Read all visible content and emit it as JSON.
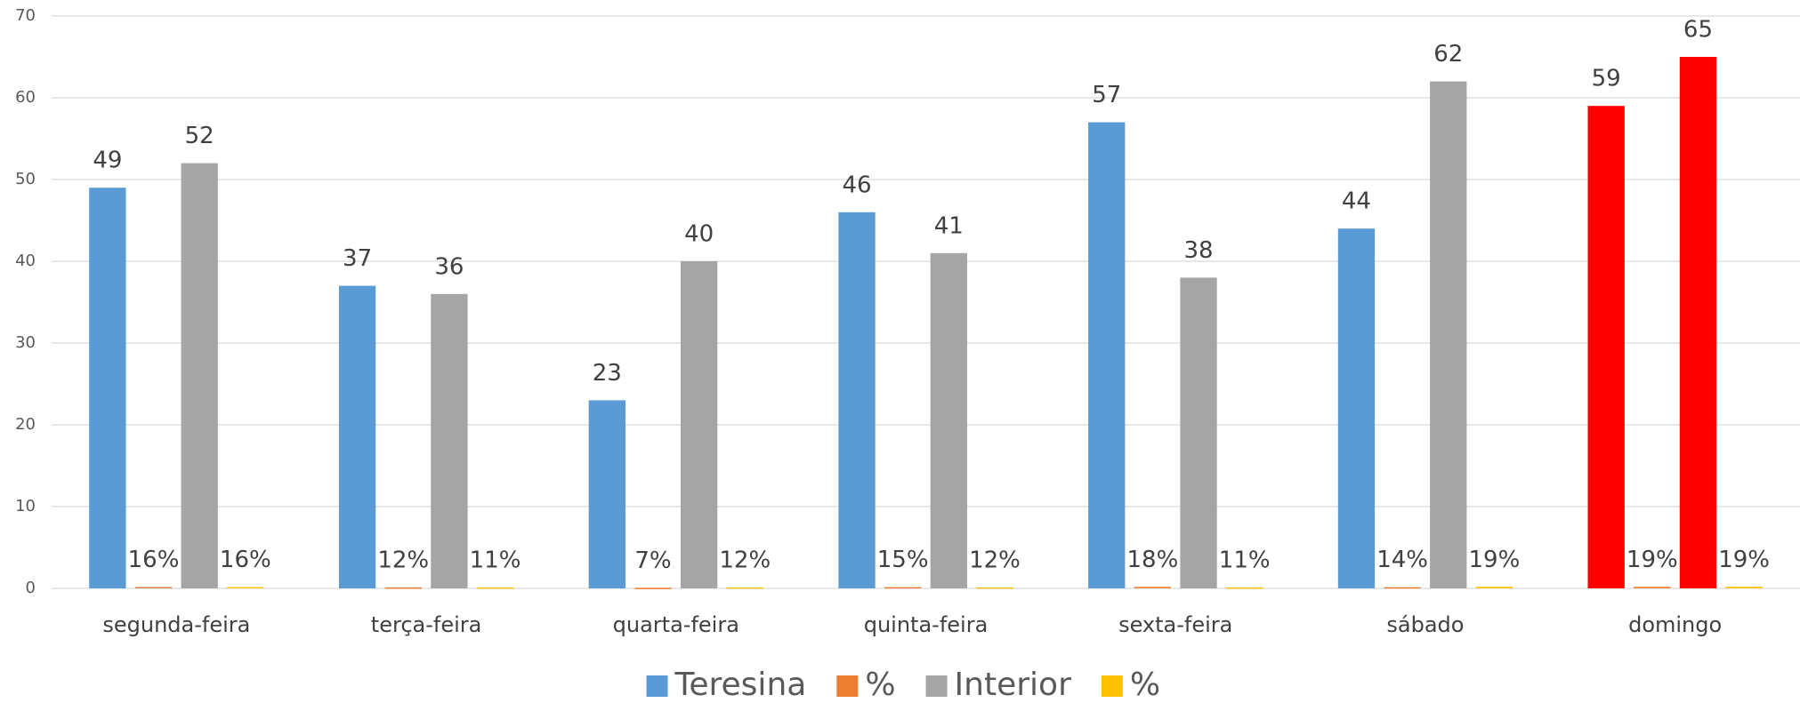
{
  "chart_data": {
    "type": "bar",
    "categories": [
      "segunda-feira",
      "terça-feira",
      "quarta-feira",
      "quinta-feira",
      "sexta-feira",
      "sábado",
      "domingo"
    ],
    "series": [
      {
        "name": "Teresina",
        "color": "#5b9bd5",
        "colors": [
          "#5b9bd5",
          "#5b9bd5",
          "#5b9bd5",
          "#5b9bd5",
          "#5b9bd5",
          "#5b9bd5",
          "#ff0000"
        ],
        "values": [
          49,
          37,
          23,
          46,
          57,
          44,
          59
        ]
      },
      {
        "name": "%",
        "color": "#ed7d31",
        "values": [
          0.16,
          0.12,
          0.07,
          0.15,
          0.18,
          0.14,
          0.19
        ],
        "value_labels": [
          "16%",
          "12%",
          "7%",
          "15%",
          "18%",
          "14%",
          "19%"
        ]
      },
      {
        "name": "Interior",
        "color": "#a5a5a5",
        "colors": [
          "#a5a5a5",
          "#a5a5a5",
          "#a5a5a5",
          "#a5a5a5",
          "#a5a5a5",
          "#a5a5a5",
          "#ff0000"
        ],
        "values": [
          52,
          36,
          40,
          41,
          38,
          62,
          65
        ]
      },
      {
        "name": "%",
        "color": "#ffc000",
        "values": [
          0.16,
          0.11,
          0.12,
          0.12,
          0.11,
          0.19,
          0.19
        ],
        "value_labels": [
          "16%",
          "11%",
          "12%",
          "12%",
          "11%",
          "19%",
          "19%"
        ]
      }
    ],
    "ylim": [
      0,
      70
    ],
    "yticks": [
      0,
      10,
      20,
      30,
      40,
      50,
      60,
      70
    ],
    "grid": true,
    "legend": "bottom"
  }
}
